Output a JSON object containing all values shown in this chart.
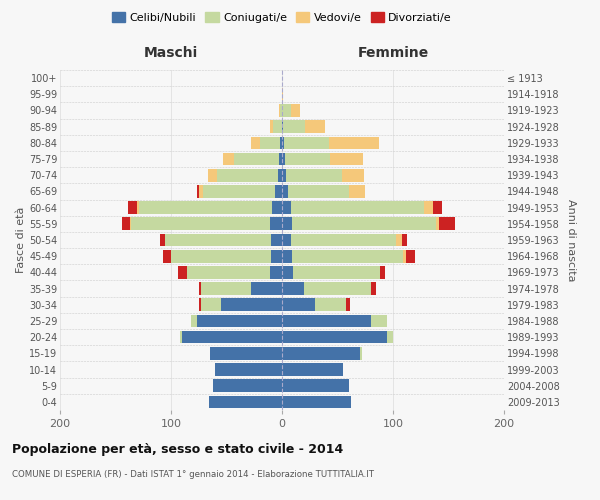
{
  "age_groups": [
    "0-4",
    "5-9",
    "10-14",
    "15-19",
    "20-24",
    "25-29",
    "30-34",
    "35-39",
    "40-44",
    "45-49",
    "50-54",
    "55-59",
    "60-64",
    "65-69",
    "70-74",
    "75-79",
    "80-84",
    "85-89",
    "90-94",
    "95-99",
    "100+"
  ],
  "birth_years": [
    "2009-2013",
    "2004-2008",
    "1999-2003",
    "1994-1998",
    "1989-1993",
    "1984-1988",
    "1979-1983",
    "1974-1978",
    "1969-1973",
    "1964-1968",
    "1959-1963",
    "1954-1958",
    "1949-1953",
    "1944-1948",
    "1939-1943",
    "1934-1938",
    "1929-1933",
    "1924-1928",
    "1919-1923",
    "1914-1918",
    "≤ 1913"
  ],
  "maschi": {
    "celibi": [
      66,
      62,
      60,
      65,
      90,
      77,
      55,
      28,
      11,
      10,
      10,
      11,
      9,
      6,
      4,
      3,
      2,
      0,
      0,
      0,
      0
    ],
    "coniugati": [
      0,
      0,
      0,
      0,
      2,
      5,
      18,
      45,
      75,
      90,
      95,
      125,
      120,
      65,
      55,
      40,
      18,
      8,
      2,
      0,
      0
    ],
    "vedovi": [
      0,
      0,
      0,
      0,
      0,
      0,
      0,
      0,
      0,
      0,
      0,
      1,
      2,
      4,
      8,
      10,
      8,
      3,
      1,
      0,
      0
    ],
    "divorziati": [
      0,
      0,
      0,
      0,
      0,
      0,
      2,
      2,
      8,
      7,
      5,
      7,
      8,
      2,
      0,
      0,
      0,
      0,
      0,
      0,
      0
    ]
  },
  "femmine": {
    "nubili": [
      62,
      60,
      55,
      70,
      95,
      80,
      30,
      20,
      10,
      9,
      8,
      9,
      8,
      5,
      4,
      3,
      2,
      1,
      0,
      0,
      0
    ],
    "coniugate": [
      0,
      0,
      0,
      2,
      5,
      15,
      28,
      60,
      78,
      100,
      95,
      130,
      120,
      55,
      50,
      40,
      40,
      20,
      8,
      0,
      0
    ],
    "vedove": [
      0,
      0,
      0,
      0,
      0,
      0,
      0,
      0,
      0,
      3,
      5,
      2,
      8,
      15,
      20,
      30,
      45,
      18,
      8,
      1,
      0
    ],
    "divorziate": [
      0,
      0,
      0,
      0,
      0,
      0,
      3,
      5,
      5,
      8,
      5,
      15,
      8,
      0,
      0,
      0,
      0,
      0,
      0,
      0,
      0
    ]
  },
  "colors": {
    "celibi": "#4472a8",
    "coniugati": "#c5d9a0",
    "vedovi": "#f5c87a",
    "divorziati": "#cc2222"
  },
  "xlim": 200,
  "title": "Popolazione per età, sesso e stato civile - 2014",
  "subtitle": "COMUNE DI ESPERIA (FR) - Dati ISTAT 1° gennaio 2014 - Elaborazione TUTTITALIA.IT",
  "ylabel_left": "Fasce di età",
  "ylabel_right": "Anni di nascita",
  "xlabel_left": "Maschi",
  "xlabel_right": "Femmine",
  "legend_labels": [
    "Celibi/Nubili",
    "Coniugati/e",
    "Vedovi/e",
    "Divorziati/e"
  ],
  "background_color": "#f7f7f7"
}
